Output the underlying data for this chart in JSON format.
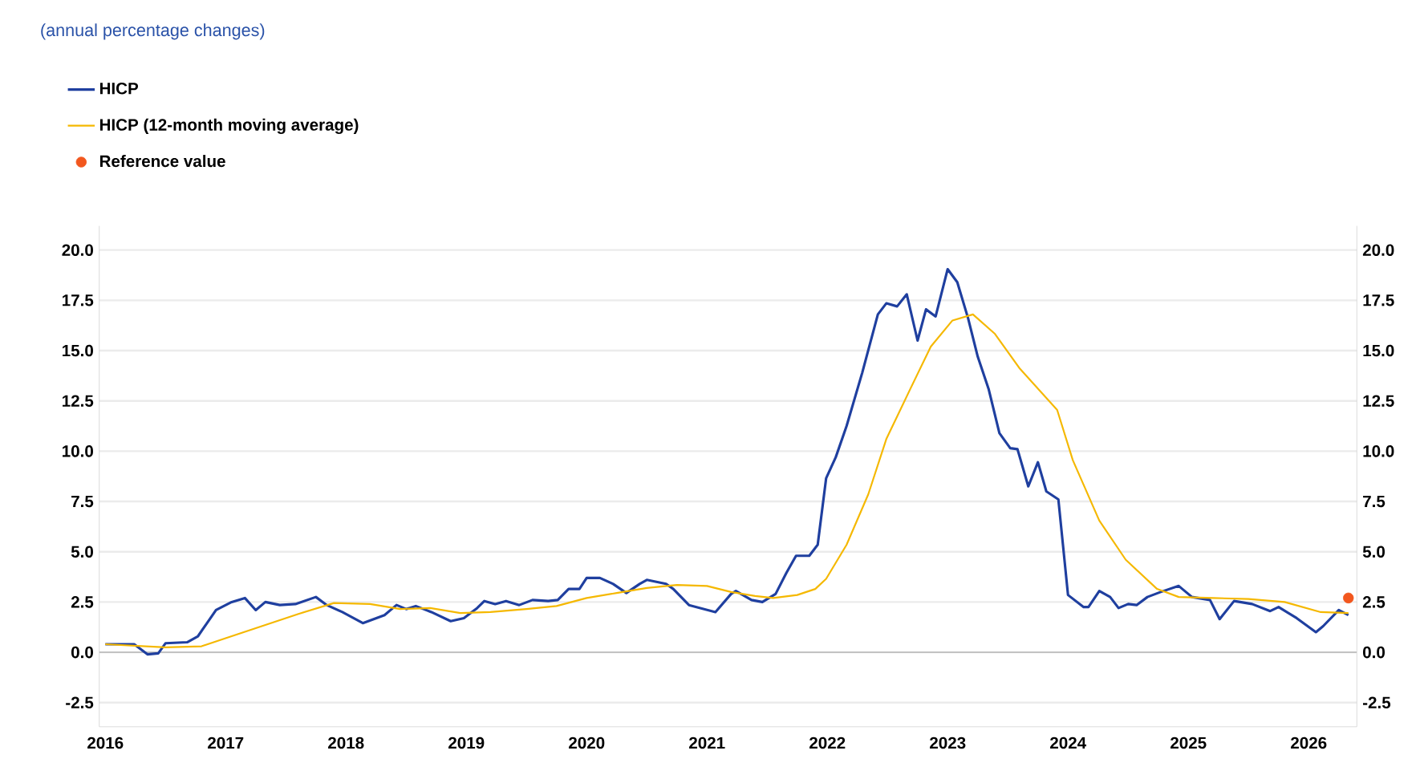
{
  "chart_data": {
    "type": "line",
    "subtitle": "(annual percentage changes)",
    "xlim": [
      2015.95,
      2026.4
    ],
    "xticks": [
      2016,
      2017,
      2018,
      2019,
      2020,
      2021,
      2022,
      2023,
      2024,
      2025,
      2026
    ],
    "ylim": [
      -3.7,
      21.2
    ],
    "yticks": [
      {
        "value": -2.5,
        "label": "-2.5"
      },
      {
        "value": 0,
        "label": "0.0"
      },
      {
        "value": 2.5,
        "label": "2.5"
      },
      {
        "value": 5,
        "label": "5.0"
      },
      {
        "value": 7.5,
        "label": "7.5"
      },
      {
        "value": 10,
        "label": "10.0"
      },
      {
        "value": 12.5,
        "label": "12.5"
      },
      {
        "value": 15,
        "label": "15.0"
      },
      {
        "value": 17.5,
        "label": "17.5"
      },
      {
        "value": 20,
        "label": "20.0"
      }
    ],
    "y2lim": [
      -3.7,
      21.2
    ],
    "y2ticks": [
      {
        "value": -2.5,
        "label": "-2.5"
      },
      {
        "value": 0,
        "label": "0.0"
      },
      {
        "value": 2.5,
        "label": "2.5"
      },
      {
        "value": 5,
        "label": "5.0"
      },
      {
        "value": 7.5,
        "label": "7.5"
      },
      {
        "value": 10,
        "label": "10.0"
      },
      {
        "value": 12.5,
        "label": "12.5"
      },
      {
        "value": 15,
        "label": "15.0"
      },
      {
        "value": 17.5,
        "label": "17.5"
      },
      {
        "value": 20,
        "label": "20.0"
      }
    ],
    "grid": "y",
    "legend": "top left",
    "ref_lines": [
      {
        "axis": "y",
        "value": 0,
        "color": "#b4b4b4"
      }
    ],
    "series": [
      {
        "name": "HICP",
        "color": "#1f3f9f",
        "x": [
          2016.0,
          2016.24,
          2016.35,
          2016.44,
          2016.5,
          2016.68,
          2016.77,
          2016.92,
          2017.05,
          2017.16,
          2017.25,
          2017.33,
          2017.45,
          2017.58,
          2017.75,
          2017.84,
          2017.97,
          2018.14,
          2018.32,
          2018.42,
          2018.5,
          2018.58,
          2018.71,
          2018.87,
          2018.98,
          2019.09,
          2019.15,
          2019.24,
          2019.33,
          2019.44,
          2019.55,
          2019.68,
          2019.76,
          2019.85,
          2019.94,
          2020.0,
          2020.11,
          2020.22,
          2020.33,
          2020.44,
          2020.5,
          2020.66,
          2020.72,
          2020.85,
          2021.07,
          2021.2,
          2021.24,
          2021.37,
          2021.46,
          2021.57,
          2021.66,
          2021.74,
          2021.85,
          2021.92,
          2021.99,
          2022.07,
          2022.16,
          2022.29,
          2022.42,
          2022.49,
          2022.58,
          2022.66,
          2022.75,
          2022.82,
          2022.9,
          2023.0,
          2023.08,
          2023.17,
          2023.25,
          2023.34,
          2023.43,
          2023.52,
          2023.58,
          2023.67,
          2023.75,
          2023.82,
          2023.92,
          2024.0,
          2024.13,
          2024.17,
          2024.26,
          2024.35,
          2024.42,
          2024.5,
          2024.57,
          2024.66,
          2024.77,
          2024.92,
          2025.03,
          2025.18,
          2025.26,
          2025.38,
          2025.53,
          2025.68,
          2025.75,
          2025.9,
          2026.06,
          2026.12,
          2026.25,
          2026.33
        ],
        "values": [
          0.4,
          0.4,
          -0.1,
          -0.05,
          0.45,
          0.5,
          0.8,
          2.1,
          2.5,
          2.7,
          2.1,
          2.5,
          2.35,
          2.4,
          2.75,
          2.35,
          2.0,
          1.45,
          1.85,
          2.35,
          2.15,
          2.3,
          2.0,
          1.55,
          1.7,
          2.2,
          2.55,
          2.4,
          2.55,
          2.35,
          2.6,
          2.55,
          2.6,
          3.15,
          3.15,
          3.7,
          3.7,
          3.4,
          2.95,
          3.4,
          3.6,
          3.4,
          3.15,
          2.35,
          2.0,
          2.9,
          3.05,
          2.6,
          2.5,
          2.9,
          3.95,
          4.8,
          4.8,
          5.35,
          8.65,
          9.7,
          11.25,
          13.9,
          16.8,
          17.35,
          17.2,
          17.8,
          15.5,
          17.05,
          16.7,
          19.05,
          18.4,
          16.6,
          14.7,
          13.1,
          10.9,
          10.15,
          10.1,
          8.25,
          9.45,
          8.0,
          7.6,
          2.85,
          2.25,
          2.25,
          3.05,
          2.75,
          2.2,
          2.4,
          2.35,
          2.75,
          3.0,
          3.3,
          2.75,
          2.6,
          1.65,
          2.55,
          2.4,
          2.05,
          2.25,
          1.7,
          1.0,
          1.3,
          2.1,
          1.85
        ]
      },
      {
        "name": "HICP (12-month moving average)",
        "color": "#f5b800",
        "x": [
          2016.0,
          2016.5,
          2016.8,
          2017.0,
          2017.3,
          2017.6,
          2017.9,
          2018.2,
          2018.45,
          2018.7,
          2018.95,
          2019.2,
          2019.5,
          2019.75,
          2020.0,
          2020.25,
          2020.5,
          2020.75,
          2021.0,
          2021.2,
          2021.4,
          2021.55,
          2021.75,
          2021.9,
          2021.99,
          2022.16,
          2022.34,
          2022.49,
          2022.69,
          2022.86,
          2023.04,
          2023.21,
          2023.39,
          2023.6,
          2023.91,
          2024.04,
          2024.26,
          2024.48,
          2024.74,
          2024.92,
          2025.2,
          2025.5,
          2025.8,
          2026.1,
          2026.33
        ],
        "values": [
          0.4,
          0.25,
          0.3,
          0.7,
          1.3,
          1.9,
          2.45,
          2.4,
          2.15,
          2.2,
          1.95,
          2.0,
          2.15,
          2.3,
          2.7,
          2.95,
          3.2,
          3.35,
          3.3,
          3.0,
          2.8,
          2.7,
          2.85,
          3.15,
          3.65,
          5.35,
          7.85,
          10.6,
          13.1,
          15.2,
          16.5,
          16.8,
          15.85,
          14.1,
          12.05,
          9.55,
          6.55,
          4.6,
          3.15,
          2.75,
          2.7,
          2.65,
          2.5,
          2.0,
          1.95
        ]
      },
      {
        "name": "Reference value",
        "type": "scatter",
        "marker": "circle",
        "color": "#f2571e",
        "x": [
          2026.33
        ],
        "values": [
          2.7
        ]
      }
    ]
  }
}
